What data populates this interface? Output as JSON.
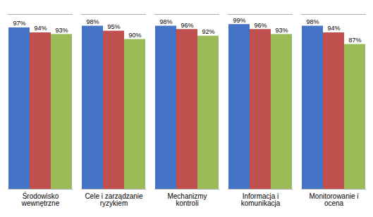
{
  "chart_data": {
    "type": "bar",
    "categories": [
      "Środowisko\nwewnętrzne",
      "Cele i zarządzanie\nryzykiem",
      "Mechanizmy\nkontroli",
      "Informacja i\nkomunikacja",
      "Monitorowanie i\nocena"
    ],
    "series": [
      {
        "color": "#4472C4",
        "values": [
          97,
          98,
          98,
          99,
          98
        ],
        "value_labels": [
          "97%",
          "98%",
          "98%",
          "99%",
          "98%"
        ]
      },
      {
        "color": "#C0504D",
        "values": [
          94,
          95,
          96,
          96,
          94
        ],
        "value_labels": [
          "94%",
          "95%",
          "96%",
          "96%",
          "94%"
        ]
      },
      {
        "color": "#9BBB59",
        "values": [
          93,
          90,
          92,
          93,
          87
        ],
        "value_labels": [
          "93%",
          "90%",
          "92%",
          "93%",
          "87%"
        ]
      }
    ],
    "ylim": [
      0,
      105
    ],
    "data_labels": true,
    "tick_labels": "x",
    "grid": false
  }
}
